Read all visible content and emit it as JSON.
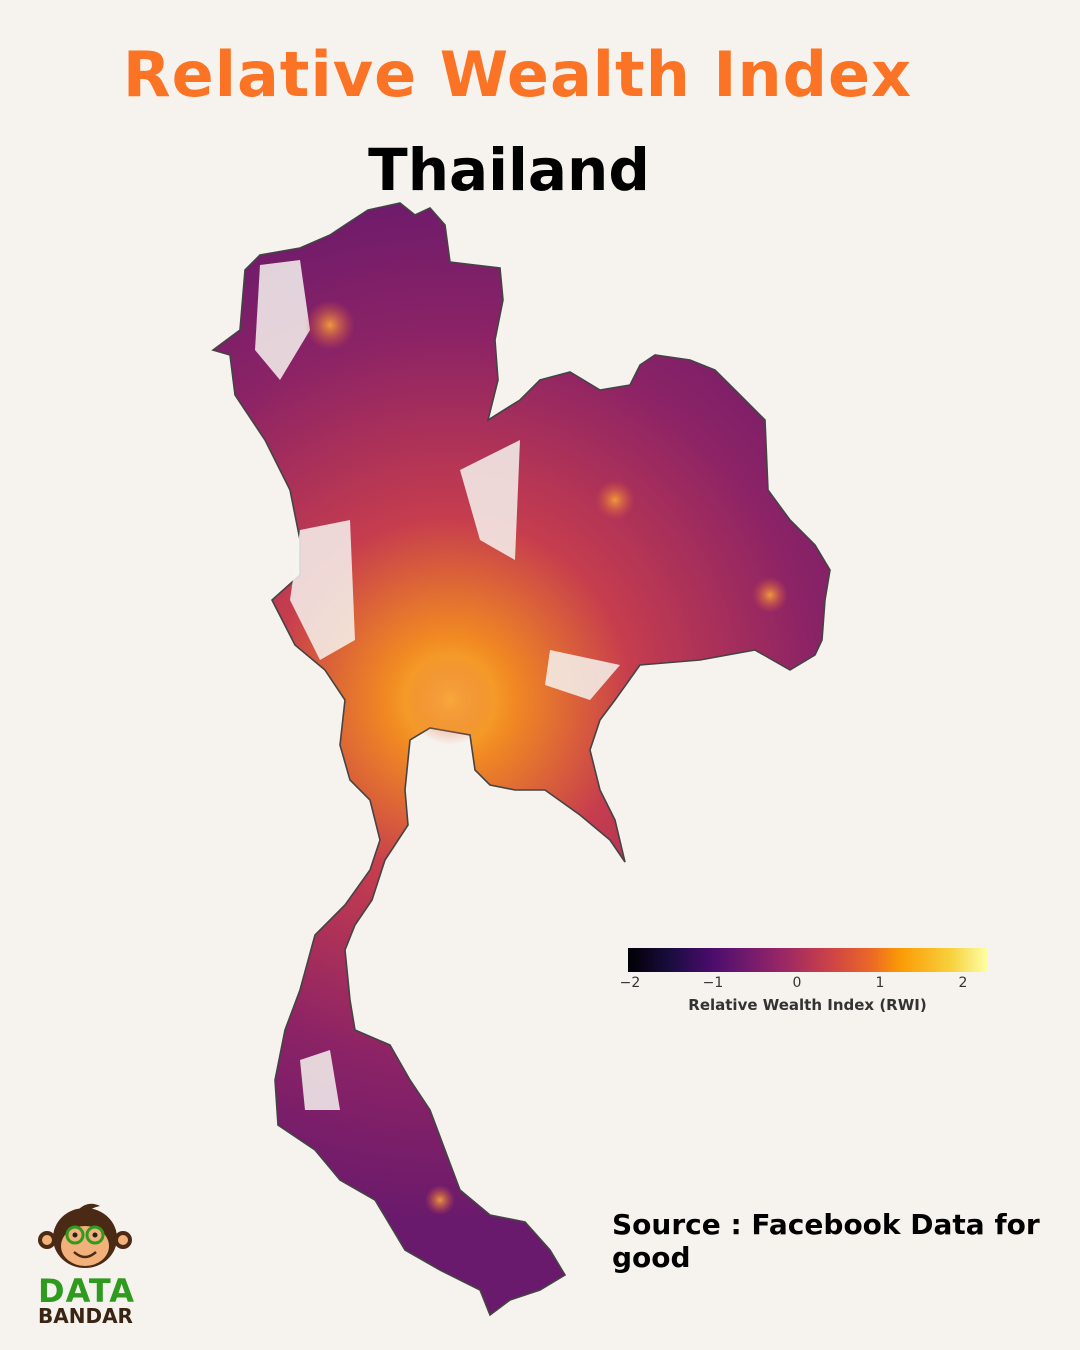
{
  "title": "Relative Wealth Index",
  "subtitle": "Thailand",
  "map": {
    "region": "Thailand",
    "variable": "Relative Wealth Index (RWI)",
    "colormap": "inferno",
    "outline_color": "#444444"
  },
  "legend": {
    "label": "Relative Wealth Index (RWI)",
    "ticks": [
      "−2",
      "−1",
      "0",
      "1",
      "2"
    ],
    "range": [
      -2,
      2.3
    ]
  },
  "source": "Source : Facebook Data for good",
  "logo": {
    "line1": "DATA",
    "line2": "BANDAR",
    "colors": {
      "green": "#2e9b1f",
      "brown": "#3a2414"
    }
  }
}
